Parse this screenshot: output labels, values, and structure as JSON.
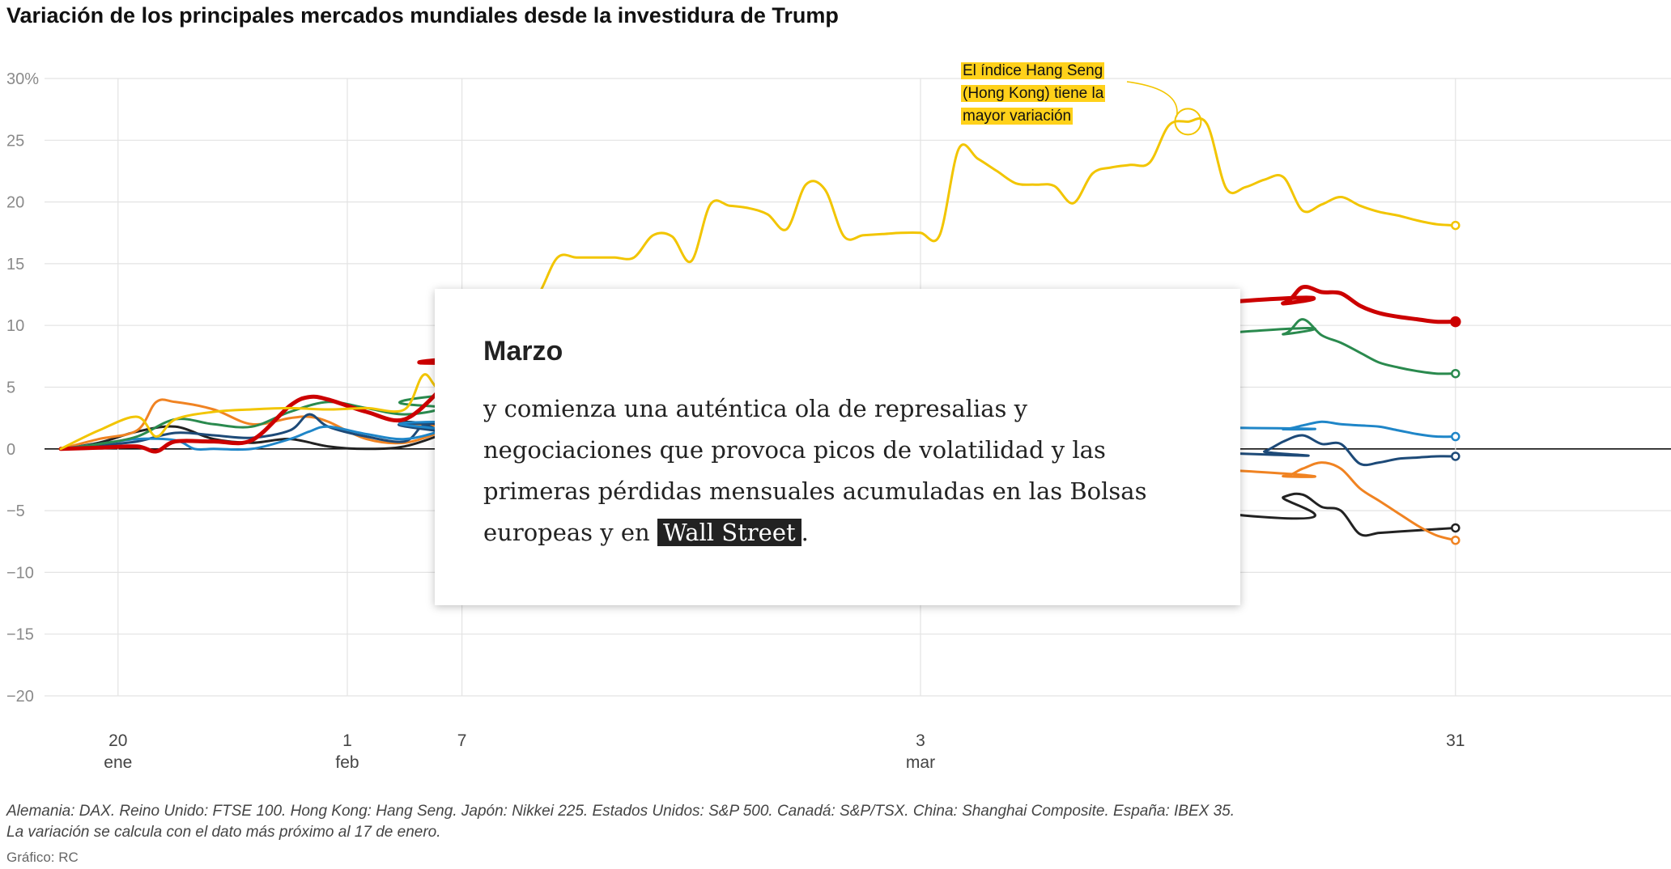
{
  "title": "Variación de los principales mercados mundiales desde la investidura de Trump",
  "notes": {
    "line1": "Alemania: DAX. Reino Unido: FTSE 100. Hong Kong: Hang Seng. Japón: Nikkei 225. Estados Unidos: S&P 500. Canadá: S&P/TSX. China: Shanghai Composite. España: IBEX 35.",
    "line2": "La variación se calcula con el dato más próximo al 17 de enero."
  },
  "source": "Gráfico: RC",
  "card": {
    "title": "Marzo",
    "text_before": "y comienza una auténtica ola de represalias y negociaciones que provoca picos de volatilidad y las primeras pérdidas mensuales acumuladas en las Bolsas europeas y en",
    "highlight": "Wall Street",
    "text_after": "."
  },
  "annotation": {
    "line1": "El índice Hang Seng",
    "line2": "(Hong Kong) tiene la",
    "line3": "mayor variación"
  },
  "chart_data": {
    "type": "line",
    "title": "Variación de los principales mercados mundiales desde la investidura de Trump",
    "ylabel": "%",
    "ylim": [
      -20,
      30
    ],
    "xlim": [
      -3,
      71
    ],
    "yticks": [
      {
        "value": 30,
        "label": "30%"
      },
      {
        "value": 25,
        "label": "25"
      },
      {
        "value": 20,
        "label": "20"
      },
      {
        "value": 15,
        "label": "15"
      },
      {
        "value": 10,
        "label": "10"
      },
      {
        "value": 5,
        "label": "5"
      },
      {
        "value": 0,
        "label": "0"
      },
      {
        "value": -5,
        "label": "−5"
      },
      {
        "value": -10,
        "label": "−10"
      },
      {
        "value": -15,
        "label": "−15"
      },
      {
        "value": -20,
        "label": "−20"
      }
    ],
    "xticks": [
      {
        "day": 3,
        "label": "20",
        "sub": "ene"
      },
      {
        "day": 15,
        "label": "1",
        "sub": "feb"
      },
      {
        "day": 21,
        "label": "7",
        "sub": ""
      },
      {
        "day": 45,
        "label": "3",
        "sub": "mar"
      },
      {
        "day": 73,
        "label": "31",
        "sub": ""
      }
    ],
    "x_note": "days since 17 enero",
    "series": [
      {
        "name": "Hang Seng",
        "color": "#f2c500",
        "width": 3,
        "x": [
          0,
          2,
          4,
          5,
          6,
          8,
          10,
          12,
          14,
          16,
          18,
          19,
          20,
          22,
          24,
          25,
          26,
          27,
          28,
          29,
          30,
          31,
          32,
          33,
          34,
          35,
          36,
          37,
          38,
          39,
          40,
          41,
          42,
          43,
          44,
          45,
          46,
          47,
          48,
          49,
          50,
          51,
          52,
          53,
          54,
          55,
          56,
          57,
          58,
          59,
          60,
          61,
          62,
          63,
          64,
          65,
          66,
          67,
          68,
          69,
          70,
          71,
          72,
          73
        ],
        "y": [
          0,
          1.5,
          2.6,
          1.0,
          2.4,
          3.0,
          3.2,
          3.3,
          3.2,
          3.3,
          3.2,
          6.0,
          5.0,
          9.0,
          11.0,
          12.5,
          15.5,
          15.5,
          15.5,
          15.5,
          15.5,
          17.3,
          17.2,
          15.2,
          19.8,
          19.7,
          19.5,
          19.0,
          17.8,
          21.4,
          21.0,
          17.2,
          17.3,
          17.4,
          17.5,
          17.5,
          17.3,
          24.3,
          23.5,
          22.5,
          21.5,
          21.4,
          21.3,
          19.9,
          22.3,
          22.8,
          23.0,
          23.2,
          26.2,
          26.5,
          26.3,
          21.1,
          21.2,
          21.8,
          22.0,
          19.3,
          19.8,
          20.4,
          19.7,
          19.2,
          18.9,
          18.5,
          18.2,
          18.1
        ]
      },
      {
        "name": "España: IBEX 35",
        "color": "#cc0000",
        "width": 5,
        "x": [
          0,
          2,
          4,
          5,
          6,
          8,
          10,
          12,
          13,
          14,
          16,
          18,
          20,
          21,
          22,
          62,
          64,
          65,
          66,
          67,
          68,
          69,
          70,
          71,
          72,
          73
        ],
        "y": [
          0,
          0.1,
          0.2,
          -0.2,
          0.6,
          0.6,
          0.7,
          3.5,
          4.2,
          4.0,
          3.0,
          2.4,
          5.0,
          6.8,
          7.5,
          12.0,
          11.8,
          13.1,
          12.7,
          12.6,
          11.6,
          11.0,
          10.7,
          10.5,
          10.3,
          10.3
        ]
      },
      {
        "name": "Alemania: DAX",
        "color": "#2a8a4e",
        "width": 3,
        "x": [
          0,
          2,
          4,
          6,
          8,
          10,
          12,
          14,
          16,
          18,
          20,
          21,
          62,
          64,
          65,
          66,
          67,
          68,
          69,
          70,
          71,
          72,
          73
        ],
        "y": [
          0,
          0.4,
          1.0,
          2.4,
          2.0,
          1.8,
          3.0,
          3.8,
          3.3,
          2.8,
          3.3,
          4.5,
          9.5,
          9.3,
          10.5,
          9.2,
          8.6,
          7.8,
          7.0,
          6.6,
          6.3,
          6.1,
          6.1
        ]
      },
      {
        "name": "Reino Unido: FTSE 100",
        "color": "#1f86c8",
        "width": 3,
        "x": [
          0,
          2,
          4,
          6,
          7,
          8,
          10,
          12,
          13,
          14,
          16,
          18,
          20,
          21,
          62,
          64,
          65,
          66,
          67,
          68,
          69,
          70,
          71,
          72,
          73
        ],
        "y": [
          0,
          0.4,
          0.8,
          0.7,
          0,
          0,
          0,
          0.8,
          1.4,
          1.8,
          1.2,
          0.8,
          1.5,
          2.2,
          1.7,
          1.6,
          1.9,
          2.2,
          2.0,
          1.9,
          1.8,
          1.5,
          1.2,
          1.0,
          1.0
        ]
      },
      {
        "name": "Estados Unidos: S&P 500",
        "color": "#1d4a78",
        "width": 3,
        "x": [
          0,
          2,
          4,
          6,
          8,
          10,
          12,
          13,
          14,
          16,
          18,
          19,
          20,
          21,
          62,
          63,
          64,
          65,
          66,
          67,
          68,
          69,
          70,
          71,
          72,
          73
        ],
        "y": [
          0,
          0.3,
          0.6,
          1.3,
          1.1,
          0.9,
          1.5,
          2.8,
          1.8,
          1.0,
          0.6,
          1.9,
          1.4,
          2.0,
          -0.4,
          -0.2,
          0.6,
          1.1,
          0.4,
          0.4,
          -1.2,
          -1.1,
          -0.8,
          -0.7,
          -0.6,
          -0.6
        ]
      },
      {
        "name": "Japón: Nikkei 225",
        "color": "#f08322",
        "width": 3,
        "x": [
          0,
          2,
          4,
          5,
          6,
          8,
          10,
          12,
          13,
          14,
          16,
          18,
          20,
          21,
          62,
          64,
          65,
          66,
          67,
          68,
          69,
          70,
          71,
          72,
          73
        ],
        "y": [
          0,
          0.8,
          1.5,
          3.8,
          3.8,
          3.2,
          2.0,
          2.5,
          2.6,
          2.2,
          0.8,
          0.5,
          1.4,
          1.8,
          -1.8,
          -2.2,
          -1.6,
          -1.1,
          -1.6,
          -3.2,
          -4.2,
          -5.2,
          -6.2,
          -7.0,
          -7.4
        ]
      },
      {
        "name": "Canadá: S&P/TSX",
        "color": "#222222",
        "width": 3,
        "x": [
          0,
          2,
          4,
          6,
          8,
          10,
          12,
          14,
          16,
          18,
          20,
          21,
          62,
          64,
          65,
          66,
          67,
          68,
          69,
          70,
          71,
          72,
          73
        ],
        "y": [
          0,
          0.5,
          1.4,
          1.8,
          0.8,
          0.5,
          0.8,
          0.2,
          0,
          0.2,
          1.2,
          1.8,
          -5.4,
          -3.9,
          -3.7,
          -4.7,
          -5.0,
          -6.9,
          -6.8,
          -6.7,
          -6.6,
          -6.5,
          -6.4
        ]
      }
    ]
  }
}
